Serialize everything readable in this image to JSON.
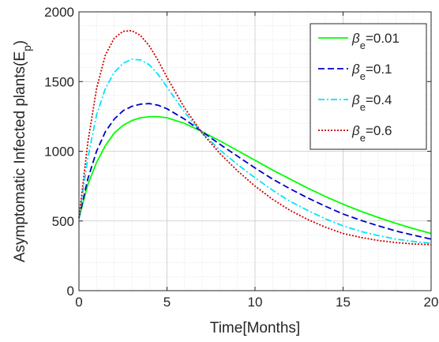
{
  "chart_data": {
    "type": "line",
    "title": "",
    "xlabel": "Time[Months]",
    "ylabel": "Asymptomatic Infected plants(E",
    "ylabel_subscript": "p",
    "ylabel_suffix": ")",
    "xlim": [
      0,
      20
    ],
    "ylim": [
      0,
      2000
    ],
    "xticks": [
      0,
      5,
      10,
      15,
      20
    ],
    "yticks": [
      0,
      500,
      1000,
      1500,
      2000
    ],
    "xtick_labels": [
      "0",
      "5",
      "10",
      "15",
      "20"
    ],
    "ytick_labels": [
      "0",
      "500",
      "1000",
      "1500",
      "2000"
    ],
    "grid": "on",
    "minor_grid": "on",
    "legend_position": "top-right",
    "legend_symbol": "β",
    "legend_subscript": "e",
    "x": [
      0,
      0.5,
      1,
      1.5,
      2,
      2.5,
      3,
      3.5,
      4,
      4.5,
      5,
      6,
      7,
      8,
      9,
      10,
      11,
      12,
      13,
      14,
      15,
      16,
      17,
      18,
      19,
      20
    ],
    "series": [
      {
        "name": "=0.01",
        "color": "#00ff00",
        "dash": "solid",
        "values": [
          520,
          760,
          920,
          1040,
          1130,
          1185,
          1220,
          1240,
          1248,
          1248,
          1240,
          1200,
          1140,
          1075,
          1005,
          935,
          865,
          800,
          735,
          675,
          620,
          570,
          525,
          483,
          445,
          410
        ]
      },
      {
        "name": "=0.1",
        "color": "#0000cc",
        "dash": "dashed",
        "values": [
          520,
          800,
          1000,
          1140,
          1230,
          1290,
          1322,
          1338,
          1342,
          1330,
          1305,
          1230,
          1140,
          1050,
          965,
          880,
          800,
          730,
          665,
          605,
          550,
          505,
          465,
          428,
          398,
          370
        ]
      },
      {
        "name": "=0.4",
        "color": "#00e5ff",
        "dash": "dashdot",
        "values": [
          520,
          950,
          1260,
          1450,
          1565,
          1630,
          1660,
          1655,
          1620,
          1550,
          1460,
          1280,
          1130,
          1010,
          905,
          810,
          720,
          640,
          575,
          515,
          465,
          425,
          395,
          370,
          353,
          340
        ]
      },
      {
        "name": "=0.6",
        "color": "#cc0000",
        "dash": "dotted",
        "values": [
          520,
          1060,
          1450,
          1690,
          1810,
          1860,
          1865,
          1830,
          1755,
          1650,
          1530,
          1310,
          1130,
          985,
          860,
          750,
          655,
          575,
          510,
          455,
          410,
          382,
          360,
          345,
          335,
          330
        ]
      }
    ]
  }
}
